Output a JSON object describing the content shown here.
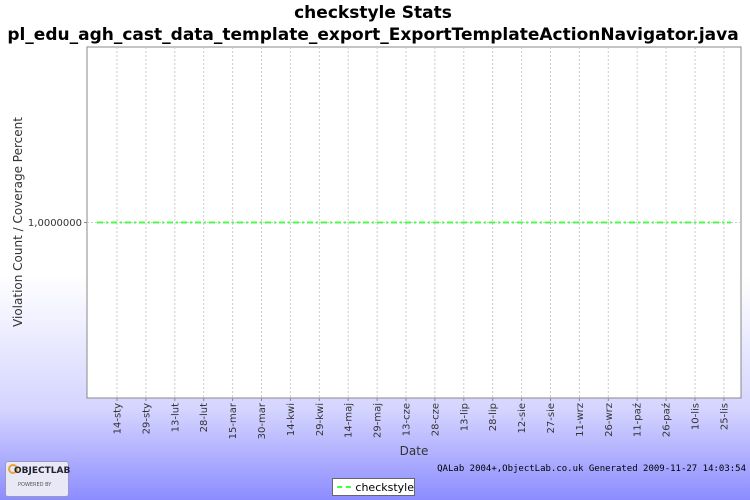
{
  "chart_data": {
    "type": "line",
    "title": "checkstyle  Stats",
    "subtitle": "pl_edu_agh_cast_data_template_export_ExportTemplateActionNavigator.java",
    "xlabel": "Date",
    "ylabel": "Violation Count / Coverage Percent",
    "x_tick_labels": [
      "14-sty",
      "29-sty",
      "13-lut",
      "28-lut",
      "15-mar",
      "30-mar",
      "14-kwi",
      "29-kwi",
      "14-maj",
      "29-maj",
      "13-cze",
      "28-cze",
      "13-lip",
      "28-lip",
      "12-sie",
      "27-sie",
      "11-wrz",
      "26-wrz",
      "11-paź",
      "26-paź",
      "10-lis",
      "25-lis"
    ],
    "y_tick_labels": [
      "1,0000000"
    ],
    "y_ticks": [
      1.0
    ],
    "ylim": [
      0.0,
      2.0
    ],
    "grid": true,
    "legend_position": "bottom-center",
    "series": [
      {
        "name": "checkstyle",
        "color": "#44ff44",
        "constant_value": 1.0
      }
    ]
  },
  "footer": "QALab 2004+,ObjectLab.co.uk Generated 2009-11-27 14:03:54",
  "logo": {
    "text": "OBJECTLAB",
    "sub": "POWERED BY"
  }
}
